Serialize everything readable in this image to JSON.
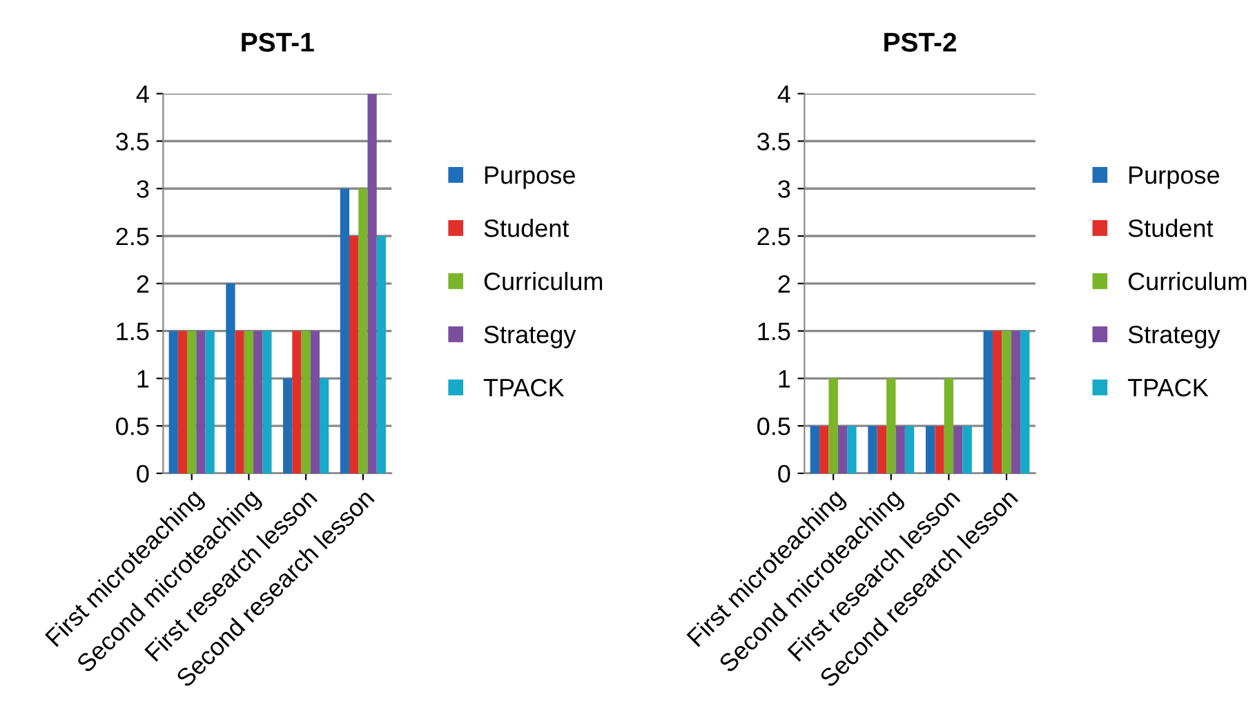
{
  "chart_data": [
    {
      "type": "bar",
      "title": "PST-1",
      "categories": [
        "First microteaching",
        "Second microteaching",
        "First research lesson",
        "Second research lesson"
      ],
      "series": [
        {
          "name": "Purpose",
          "color": "#1f6fb8",
          "values": [
            1.5,
            2,
            1,
            3
          ]
        },
        {
          "name": "Student",
          "color": "#e0302a",
          "values": [
            1.5,
            1.5,
            1.5,
            2.5
          ]
        },
        {
          "name": "Curriculum",
          "color": "#7ab52a",
          "values": [
            1.5,
            1.5,
            1.5,
            3
          ]
        },
        {
          "name": "Strategy",
          "color": "#7a4fa0",
          "values": [
            1.5,
            1.5,
            1.5,
            4
          ]
        },
        {
          "name": "TPACK",
          "color": "#17a9c8",
          "values": [
            1.5,
            1.5,
            1,
            2.5
          ]
        }
      ],
      "ylim": [
        0,
        4
      ],
      "yticks": [
        0,
        0.5,
        1,
        1.5,
        2,
        2.5,
        3,
        3.5,
        4
      ],
      "grid": "y",
      "legend": "right"
    },
    {
      "type": "bar",
      "title": "PST-2",
      "categories": [
        "First microteaching",
        "Second microteaching",
        "First research lesson",
        "Second research lesson"
      ],
      "series": [
        {
          "name": "Purpose",
          "color": "#1f6fb8",
          "values": [
            0.5,
            0.5,
            0.5,
            1.5
          ]
        },
        {
          "name": "Student",
          "color": "#e0302a",
          "values": [
            0.5,
            0.5,
            0.5,
            1.5
          ]
        },
        {
          "name": "Curriculum",
          "color": "#7ab52a",
          "values": [
            1,
            1,
            1,
            1.5
          ]
        },
        {
          "name": "Strategy",
          "color": "#7a4fa0",
          "values": [
            0.5,
            0.5,
            0.5,
            1.5
          ]
        },
        {
          "name": "TPACK",
          "color": "#17a9c8",
          "values": [
            0.5,
            0.5,
            0.5,
            1.5
          ]
        }
      ],
      "ylim": [
        0,
        4
      ],
      "yticks": [
        0,
        0.5,
        1,
        1.5,
        2,
        2.5,
        3,
        3.5,
        4
      ],
      "grid": "y",
      "legend": "right"
    }
  ]
}
